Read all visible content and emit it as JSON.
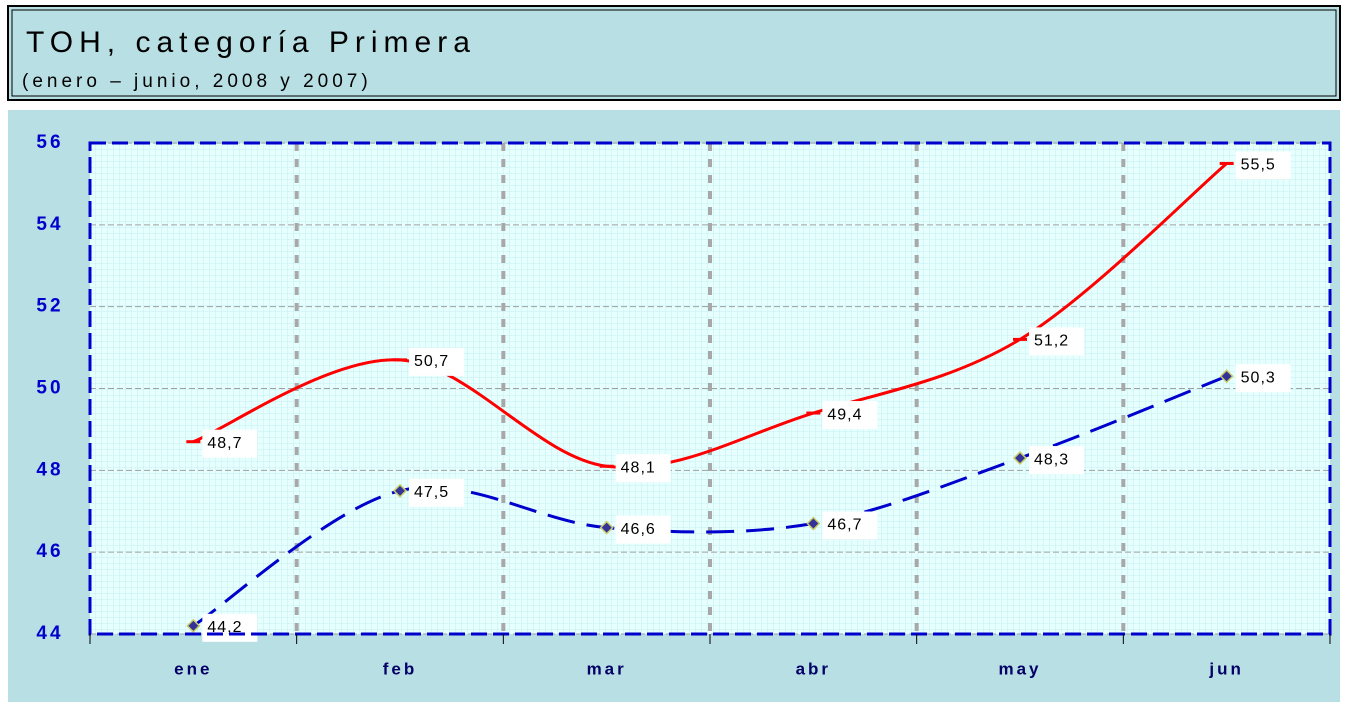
{
  "chart_data": {
    "type": "line",
    "title": "TOH, categoría Primera",
    "subtitle": "(enero – junio, 2008 y 2007)",
    "categories": [
      "ene",
      "feb",
      "mar",
      "abr",
      "may",
      "jun"
    ],
    "series": [
      {
        "color": "#ff0000",
        "values": [
          48.7,
          50.7,
          48.1,
          49.4,
          51.2,
          55.5
        ],
        "value_labels": [
          "48,7",
          "50,7",
          "48,1",
          "49,4",
          "51,2",
          "55,5"
        ]
      },
      {
        "color": "#0000cc",
        "values": [
          44.2,
          47.5,
          46.6,
          46.7,
          48.3,
          50.3
        ],
        "value_labels": [
          "44,2",
          "47,5",
          "46,6",
          "46,7",
          "48,3",
          "50,3"
        ]
      }
    ],
    "ylim": [
      44,
      56
    ],
    "yticks": [
      44,
      46,
      48,
      50,
      52,
      54,
      56
    ],
    "grid": true
  }
}
